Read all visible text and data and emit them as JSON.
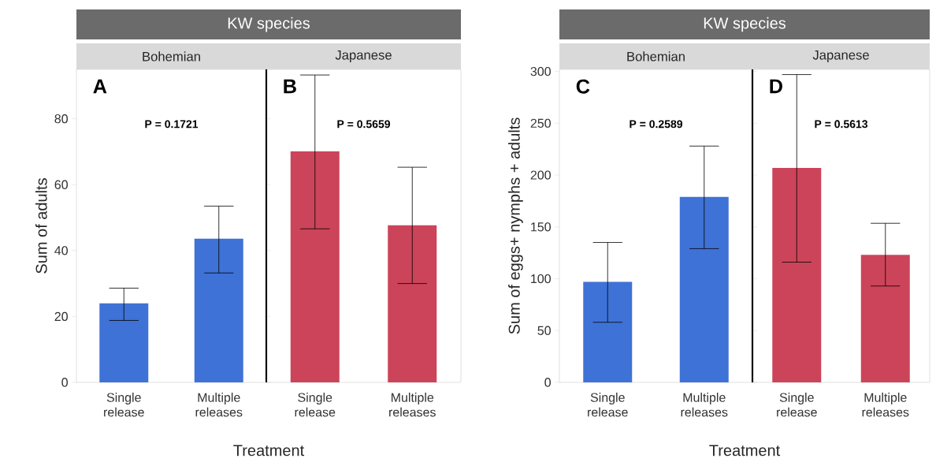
{
  "chart_data": [
    {
      "type": "bar",
      "title": "Bohemian",
      "ylabel": "Sum of adults",
      "xlabel": "Treatment",
      "annotations": [
        "A",
        "P = 0.1721",
        "KW species"
      ],
      "categories": [
        "Single release",
        "Multiple releases"
      ],
      "values": [
        24,
        43.6
      ],
      "colors": [
        "#3f72d6",
        "#3f72d6"
      ],
      "errors": [
        [
          18.8,
          28.6
        ],
        [
          33.2,
          53.5
        ]
      ],
      "ylim": [
        0,
        95
      ],
      "yticks": [
        0,
        20,
        40,
        60,
        80
      ]
    },
    {
      "type": "bar",
      "title": "Japanese",
      "annotations": [
        "B",
        "P = 0.5659"
      ],
      "categories": [
        "Single release",
        "Multiple releases"
      ],
      "values": [
        70.1,
        47.7
      ],
      "colors": [
        "#cc4459",
        "#cc4459"
      ],
      "errors": [
        [
          46.6,
          93.3
        ],
        [
          30,
          65.3
        ]
      ],
      "ylim": [
        0,
        95
      ],
      "tick_labels": "x"
    },
    {
      "type": "bar",
      "title": "Bohemian",
      "ylabel": "Sum of eggs+ nymphs + adults",
      "xlabel": "Treatment",
      "annotations": [
        "C",
        "P = 0.2589",
        "KW species"
      ],
      "categories": [
        "Single release",
        "Multiple releases"
      ],
      "values": [
        97,
        179
      ],
      "colors": [
        "#3f72d6",
        "#3f72d6"
      ],
      "errors": [
        [
          58,
          135
        ],
        [
          129,
          228
        ]
      ],
      "ylim": [
        0,
        302
      ],
      "yticks": [
        0,
        50,
        100,
        150,
        200,
        250,
        300
      ]
    },
    {
      "type": "bar",
      "title": "Japanese",
      "annotations": [
        "D",
        "P = 0.5613"
      ],
      "categories": [
        "Single release",
        "Multiple releases"
      ],
      "values": [
        207,
        123
      ],
      "colors": [
        "#cc4459",
        "#cc4459"
      ],
      "errors": [
        [
          116,
          297
        ],
        [
          93,
          153.5
        ]
      ],
      "ylim": [
        0,
        302
      ],
      "tick_labels": "x"
    }
  ]
}
